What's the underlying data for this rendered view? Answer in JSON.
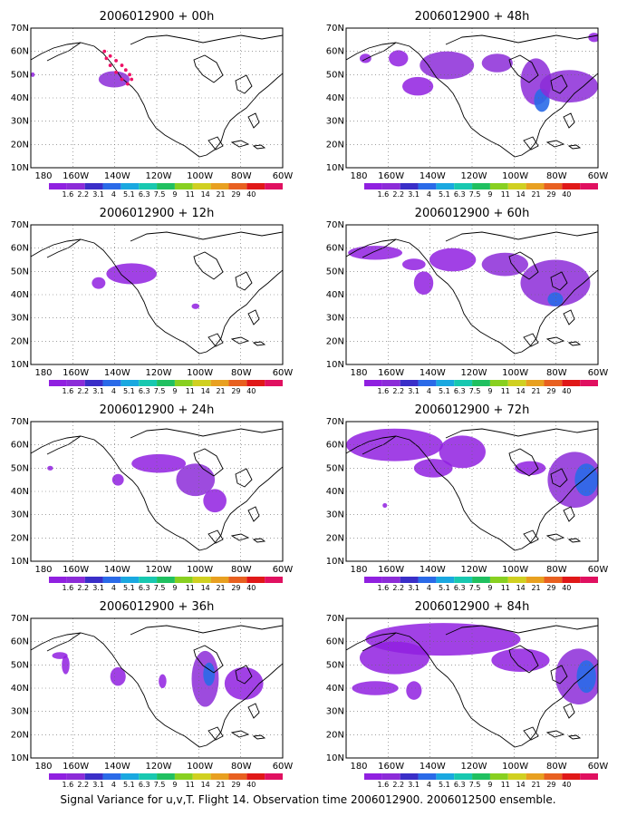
{
  "caption": "Signal Variance for u,v,T. Flight 14. Observation time 2006012900. 2006012500 ensemble.",
  "colors": {
    "land": "#ffffff",
    "coast": "#000000",
    "grid": "#666666",
    "track": "#ee1166"
  },
  "colorbar": {
    "labels": [
      "1.6",
      "2.2",
      "3.1",
      "4",
      "5.1",
      "6.3",
      "7.5",
      "9",
      "11",
      "14",
      "21",
      "29",
      "40"
    ],
    "colors": [
      "#9020e0",
      "#8c2cd8",
      "#3a2ec8",
      "#2a6ae8",
      "#1aa8e0",
      "#18c8b0",
      "#20c060",
      "#88d020",
      "#d0d020",
      "#e8a020",
      "#e86020",
      "#e01818",
      "#e01060"
    ]
  },
  "chart_data": [
    {
      "type": "heatmap",
      "title": "2006012900 + 00h",
      "x_ticks": [
        "180",
        "160W",
        "140W",
        "120W",
        "100W",
        "80W",
        "60W"
      ],
      "y_ticks": [
        "10N",
        "20N",
        "30N",
        "40N",
        "50N",
        "60N",
        "70N"
      ],
      "xlim": [
        -190,
        -60
      ],
      "ylim": [
        10,
        70
      ],
      "grid": true,
      "flight_track": [
        [
          -152,
          60
        ],
        [
          -149,
          58
        ],
        [
          -146,
          56
        ],
        [
          -143,
          54
        ],
        [
          -141,
          52
        ],
        [
          -139,
          50
        ],
        [
          -138,
          48
        ],
        [
          -140,
          46
        ],
        [
          -143,
          48
        ],
        [
          -146,
          51
        ],
        [
          -149,
          54
        ],
        [
          -151,
          57
        ]
      ],
      "blobs": [
        {
          "lon": -147,
          "lat": 48,
          "rx": 8,
          "ry": 3.5,
          "level": 1
        },
        {
          "lon": -189,
          "lat": 50,
          "rx": 1,
          "ry": 1,
          "level": 0
        }
      ]
    },
    {
      "type": "heatmap",
      "title": "2006012900 + 48h",
      "x_ticks": [
        "180",
        "160W",
        "140W",
        "120W",
        "100W",
        "80W",
        "60W"
      ],
      "y_ticks": [
        "10N",
        "20N",
        "30N",
        "40N",
        "50N",
        "60N",
        "70N"
      ],
      "xlim": [
        -190,
        -60
      ],
      "ylim": [
        10,
        70
      ],
      "grid": true,
      "blobs": [
        {
          "lon": -180,
          "lat": 57,
          "rx": 3,
          "ry": 2,
          "level": 0
        },
        {
          "lon": -163,
          "lat": 57,
          "rx": 5,
          "ry": 3.5,
          "level": 0
        },
        {
          "lon": -153,
          "lat": 45,
          "rx": 8,
          "ry": 4,
          "level": 0
        },
        {
          "lon": -138,
          "lat": 54,
          "rx": 14,
          "ry": 6,
          "level": 1
        },
        {
          "lon": -112,
          "lat": 55,
          "rx": 8,
          "ry": 4,
          "level": 1
        },
        {
          "lon": -92,
          "lat": 47,
          "rx": 8,
          "ry": 10,
          "level": 1
        },
        {
          "lon": -89,
          "lat": 39,
          "rx": 4,
          "ry": 5,
          "level": 3
        },
        {
          "lon": -75,
          "lat": 45,
          "rx": 15,
          "ry": 7,
          "level": 1
        },
        {
          "lon": -62,
          "lat": 66,
          "rx": 3,
          "ry": 2,
          "level": 0
        }
      ]
    },
    {
      "type": "heatmap",
      "title": "2006012900 + 12h",
      "x_ticks": [
        "180",
        "160W",
        "140W",
        "120W",
        "100W",
        "80W",
        "60W"
      ],
      "y_ticks": [
        "10N",
        "20N",
        "30N",
        "40N",
        "50N",
        "60N",
        "70N"
      ],
      "xlim": [
        -190,
        -60
      ],
      "ylim": [
        10,
        70
      ],
      "grid": true,
      "blobs": [
        {
          "lon": -138,
          "lat": 49,
          "rx": 13,
          "ry": 4.5,
          "level": 0
        },
        {
          "lon": -155,
          "lat": 45,
          "rx": 3.5,
          "ry": 2.5,
          "level": 0
        },
        {
          "lon": -105,
          "lat": 35,
          "rx": 2,
          "ry": 1.2,
          "level": 0
        }
      ]
    },
    {
      "type": "heatmap",
      "title": "2006012900 + 60h",
      "x_ticks": [
        "180",
        "160W",
        "140W",
        "120W",
        "100W",
        "80W",
        "60W"
      ],
      "y_ticks": [
        "10N",
        "20N",
        "30N",
        "40N",
        "50N",
        "60N",
        "70N"
      ],
      "xlim": [
        -190,
        -60
      ],
      "ylim": [
        10,
        70
      ],
      "grid": true,
      "blobs": [
        {
          "lon": -175,
          "lat": 58,
          "rx": 14,
          "ry": 3,
          "level": 0
        },
        {
          "lon": -155,
          "lat": 53,
          "rx": 6,
          "ry": 2.5,
          "level": 0
        },
        {
          "lon": -135,
          "lat": 55,
          "rx": 12,
          "ry": 5,
          "level": 0
        },
        {
          "lon": -150,
          "lat": 45,
          "rx": 5,
          "ry": 5,
          "level": 0
        },
        {
          "lon": -108,
          "lat": 53,
          "rx": 12,
          "ry": 5,
          "level": 1
        },
        {
          "lon": -82,
          "lat": 45,
          "rx": 18,
          "ry": 10,
          "level": 1
        },
        {
          "lon": -82,
          "lat": 38,
          "rx": 4,
          "ry": 3,
          "level": 3
        }
      ]
    },
    {
      "type": "heatmap",
      "title": "2006012900 + 24h",
      "x_ticks": [
        "180",
        "160W",
        "140W",
        "120W",
        "100W",
        "80W",
        "60W"
      ],
      "y_ticks": [
        "10N",
        "20N",
        "30N",
        "40N",
        "50N",
        "60N",
        "70N"
      ],
      "xlim": [
        -190,
        -60
      ],
      "ylim": [
        10,
        70
      ],
      "grid": true,
      "blobs": [
        {
          "lon": -124,
          "lat": 52,
          "rx": 14,
          "ry": 4,
          "level": 0
        },
        {
          "lon": -105,
          "lat": 45,
          "rx": 10,
          "ry": 7,
          "level": 1
        },
        {
          "lon": -95,
          "lat": 36,
          "rx": 6,
          "ry": 5,
          "level": 0
        },
        {
          "lon": -145,
          "lat": 45,
          "rx": 3,
          "ry": 2.5,
          "level": 0
        },
        {
          "lon": -180,
          "lat": 50,
          "rx": 1.5,
          "ry": 1,
          "level": 0
        }
      ]
    },
    {
      "type": "heatmap",
      "title": "2006012900 + 72h",
      "x_ticks": [
        "180",
        "160W",
        "140W",
        "120W",
        "100W",
        "80W",
        "60W"
      ],
      "y_ticks": [
        "10N",
        "20N",
        "30N",
        "40N",
        "50N",
        "60N",
        "70N"
      ],
      "xlim": [
        -190,
        -60
      ],
      "ylim": [
        10,
        70
      ],
      "grid": true,
      "blobs": [
        {
          "lon": -165,
          "lat": 60,
          "rx": 25,
          "ry": 7,
          "level": 0
        },
        {
          "lon": -130,
          "lat": 57,
          "rx": 12,
          "ry": 7,
          "level": 0
        },
        {
          "lon": -145,
          "lat": 50,
          "rx": 10,
          "ry": 4,
          "level": 0
        },
        {
          "lon": -95,
          "lat": 50,
          "rx": 8,
          "ry": 3,
          "level": 0
        },
        {
          "lon": -72,
          "lat": 45,
          "rx": 14,
          "ry": 12,
          "level": 1
        },
        {
          "lon": -66,
          "lat": 45,
          "rx": 6,
          "ry": 7,
          "level": 3
        },
        {
          "lon": -170,
          "lat": 34,
          "rx": 1.2,
          "ry": 1,
          "level": 0
        }
      ]
    },
    {
      "type": "heatmap",
      "title": "2006012900 + 36h",
      "x_ticks": [
        "180",
        "160W",
        "140W",
        "120W",
        "100W",
        "80W",
        "60W"
      ],
      "y_ticks": [
        "10N",
        "20N",
        "30N",
        "40N",
        "50N",
        "60N",
        "70N"
      ],
      "xlim": [
        -190,
        -60
      ],
      "ylim": [
        10,
        70
      ],
      "grid": true,
      "blobs": [
        {
          "lon": -100,
          "lat": 44,
          "rx": 7,
          "ry": 12,
          "level": 1
        },
        {
          "lon": -98,
          "lat": 46,
          "rx": 3,
          "ry": 5,
          "level": 3
        },
        {
          "lon": -80,
          "lat": 42,
          "rx": 10,
          "ry": 7,
          "level": 0
        },
        {
          "lon": -145,
          "lat": 45,
          "rx": 4,
          "ry": 4,
          "level": 0
        },
        {
          "lon": -175,
          "lat": 54,
          "rx": 4,
          "ry": 1.5,
          "level": 0
        },
        {
          "lon": -172,
          "lat": 50,
          "rx": 2,
          "ry": 4,
          "level": 0
        },
        {
          "lon": -122,
          "lat": 43,
          "rx": 2,
          "ry": 3,
          "level": 0
        }
      ]
    },
    {
      "type": "heatmap",
      "title": "2006012900 + 84h",
      "x_ticks": [
        "180",
        "160W",
        "140W",
        "120W",
        "100W",
        "80W",
        "60W"
      ],
      "y_ticks": [
        "10N",
        "20N",
        "30N",
        "40N",
        "50N",
        "60N",
        "70N"
      ],
      "xlim": [
        -190,
        -60
      ],
      "ylim": [
        10,
        70
      ],
      "grid": true,
      "blobs": [
        {
          "lon": -140,
          "lat": 61,
          "rx": 40,
          "ry": 7,
          "level": 0
        },
        {
          "lon": -165,
          "lat": 53,
          "rx": 18,
          "ry": 7,
          "level": 0
        },
        {
          "lon": -100,
          "lat": 52,
          "rx": 15,
          "ry": 5,
          "level": 0
        },
        {
          "lon": -175,
          "lat": 40,
          "rx": 12,
          "ry": 3,
          "level": 0
        },
        {
          "lon": -155,
          "lat": 39,
          "rx": 4,
          "ry": 4,
          "level": 0
        },
        {
          "lon": -70,
          "lat": 45,
          "rx": 12,
          "ry": 12,
          "level": 1
        },
        {
          "lon": -66,
          "lat": 45,
          "rx": 5,
          "ry": 7,
          "level": 3
        }
      ]
    }
  ]
}
